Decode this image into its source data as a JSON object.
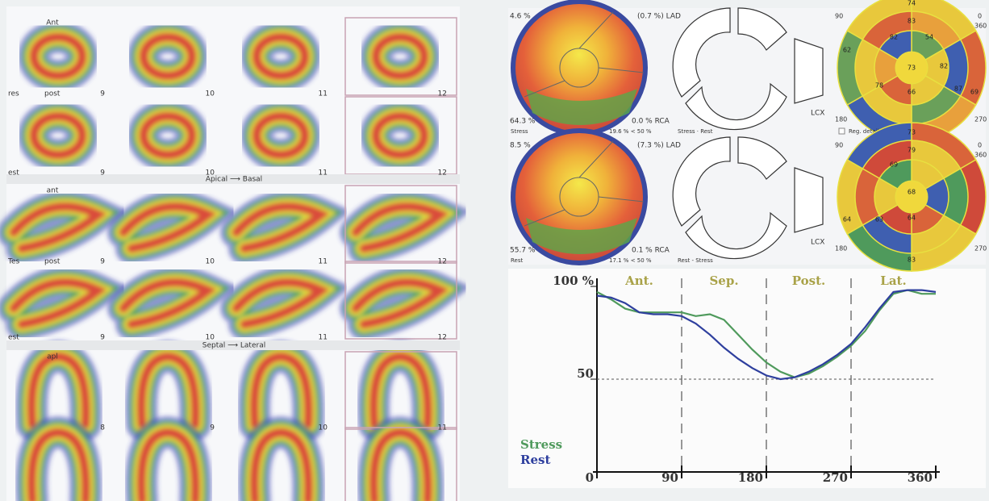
{
  "slices": [
    {
      "top_label": "Ant",
      "side_labels": [
        "res",
        "post"
      ],
      "numbers": [
        "9",
        "10",
        "11",
        "12"
      ]
    },
    {
      "side_labels": [
        "est"
      ],
      "numbers": [
        "9",
        "10",
        "11",
        "12"
      ]
    },
    {
      "top_label": "ant",
      "side_labels": [
        "Tes",
        "post"
      ],
      "numbers": [
        "9",
        "10",
        "11",
        "12"
      ]
    },
    {
      "side_labels": [
        "est"
      ],
      "numbers": [
        "9",
        "10",
        "11",
        "12"
      ]
    },
    {
      "top_label": "apl",
      "numbers": [
        "8",
        "9",
        "10",
        "11"
      ]
    }
  ],
  "dividers": [
    "Apical ⟶ Basal",
    "Septal ⟶ Lateral"
  ],
  "polar_maps": [
    {
      "top_left": "4.6 %",
      "top_right": "(0.7 %) LAD",
      "bottom_left": "64.3 %",
      "bottom_right": "0.0 % RCA",
      "lcx": "LCX",
      "footer": [
        "Stress",
        "19.6 % < 50 %",
        "Stress · Rest"
      ],
      "angles": [
        "90",
        "0",
        "360",
        "180",
        "270"
      ],
      "option": "Reg. details",
      "segments": [
        "74",
        "83",
        "82",
        "54",
        "73",
        "82",
        "87",
        "62",
        "78",
        "66",
        "69",
        "65"
      ]
    },
    {
      "top_left": "8.5 %",
      "top_right": "(7.3 %) LAD",
      "bottom_left": "55.7 %",
      "bottom_right": "0.1 % RCA",
      "lcx": "LCX",
      "footer": [
        "Rest",
        "17.1 % < 50 %",
        "Rest - Stress"
      ],
      "angles": [
        "90",
        "0",
        "360",
        "180",
        "270"
      ],
      "segments": [
        "73",
        "79",
        "69",
        "68",
        "64",
        "64",
        "63",
        "83"
      ]
    }
  ],
  "chart_data": {
    "type": "line",
    "regions": [
      "Ant.",
      "Sep.",
      "Post.",
      "Lat."
    ],
    "x": [
      0,
      15,
      30,
      45,
      60,
      75,
      90,
      105,
      120,
      135,
      150,
      165,
      180,
      195,
      210,
      225,
      240,
      255,
      270,
      285,
      300,
      315,
      330,
      345,
      360
    ],
    "series": [
      {
        "name": "Stress",
        "color": "#4f9a5c",
        "values": [
          97,
          93,
          88,
          86,
          86,
          86,
          86,
          84,
          85,
          82,
          74,
          66,
          59,
          54,
          51,
          53,
          57,
          62,
          68,
          76,
          87,
          96,
          98,
          96,
          96
        ]
      },
      {
        "name": "Rest",
        "color": "#2e3f9e",
        "values": [
          95,
          94,
          91,
          86,
          85,
          85,
          84,
          80,
          74,
          67,
          61,
          56,
          52,
          50,
          51,
          54,
          58,
          63,
          69,
          78,
          88,
          97,
          98,
          98,
          97
        ]
      }
    ],
    "xlim": [
      0,
      360
    ],
    "xticks": [
      0,
      90,
      180,
      270,
      360
    ],
    "ylim": [
      0,
      100
    ],
    "yticks": [
      50,
      {
        "value": 100,
        "label": "100 %"
      }
    ]
  }
}
